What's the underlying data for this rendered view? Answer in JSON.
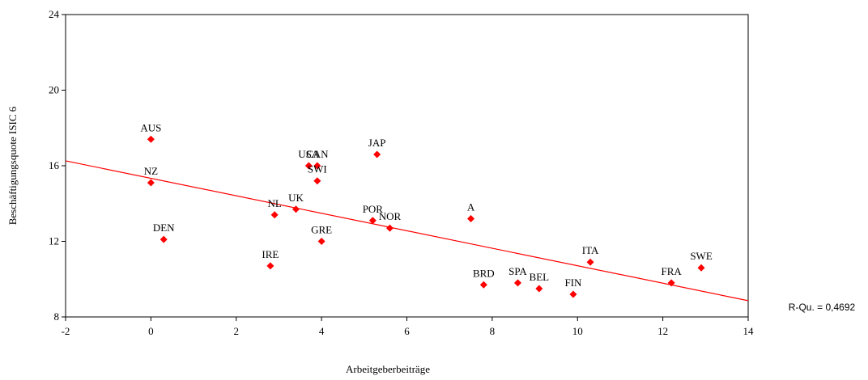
{
  "chart_data": {
    "type": "scatter",
    "x_label": "Arbeitgeberbeiträge",
    "y_label": "Beschäftigungsquote ISIC 6",
    "annotation": "R-Qu. = 0,4692",
    "xlim": [
      -2,
      14
    ],
    "xticks": [
      -2,
      0,
      2,
      4,
      6,
      8,
      10,
      12,
      14
    ],
    "ylim": [
      8,
      24
    ],
    "yticks": [
      8,
      12,
      16,
      20,
      24
    ],
    "color": "#ff0000",
    "labels": [
      "AUS",
      "NZ",
      "DEN",
      "IRE",
      "NL",
      "UK",
      "USA",
      "CAN",
      "SWI",
      "GRE",
      "JAP",
      "POR",
      "NOR",
      "A",
      "BRD",
      "SPA",
      "BEL",
      "FIN",
      "ITA",
      "FRA",
      "SWE"
    ],
    "x": [
      0,
      0,
      0.3,
      2.8,
      2.9,
      3.4,
      3.7,
      3.9,
      3.9,
      4.0,
      5.3,
      5.2,
      5.6,
      7.5,
      7.8,
      8.6,
      9.1,
      9.9,
      10.3,
      12.2,
      12.9
    ],
    "values": [
      17.4,
      15.1,
      12.1,
      10.7,
      13.4,
      13.7,
      16.0,
      16.0,
      15.2,
      12.0,
      16.6,
      13.1,
      12.7,
      13.2,
      9.7,
      9.8,
      9.5,
      9.2,
      10.9,
      9.8,
      10.6
    ],
    "trendline": {
      "x": [
        -2,
        14
      ],
      "values": [
        16.26,
        8.86
      ]
    }
  }
}
